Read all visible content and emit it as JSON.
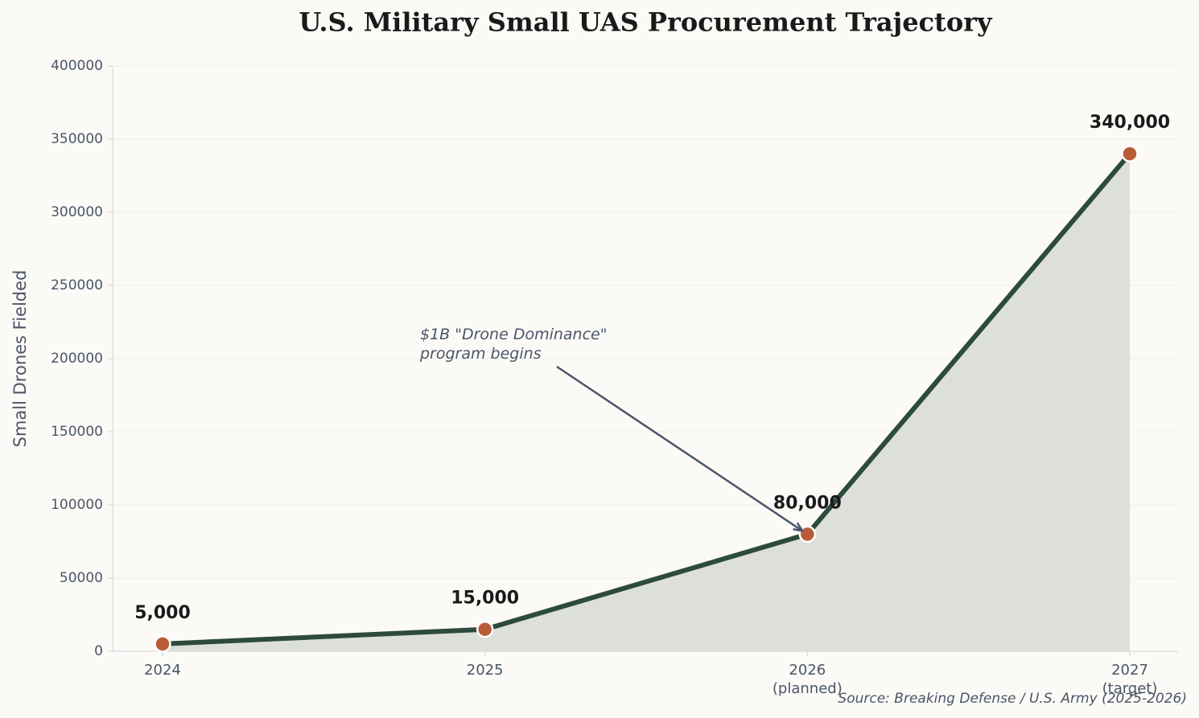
{
  "chart_data": {
    "type": "line",
    "title": "U.S. Military Small UAS Procurement Trajectory",
    "y_label": "Small Drones Fielded",
    "categories": [
      "2024",
      "2025",
      "2026\n(planned)",
      "2027\n(target)"
    ],
    "values": [
      5000,
      15000,
      80000,
      340000
    ],
    "value_labels": [
      "5,000",
      "15,000",
      "80,000",
      "340,000"
    ],
    "color": "#2d4a3e",
    "marker_color": "#b85c38",
    "area_color": "#dcdfda",
    "ylim": [
      0,
      400000
    ],
    "yticks": [
      0,
      50000,
      100000,
      150000,
      200000,
      250000,
      300000,
      350000,
      400000
    ],
    "grid": true,
    "annotation": "$1B \"Drone Dominance\"\nprogram begins",
    "source": "Source: Breaking Defense / U.S. Army (2025-2026)"
  }
}
